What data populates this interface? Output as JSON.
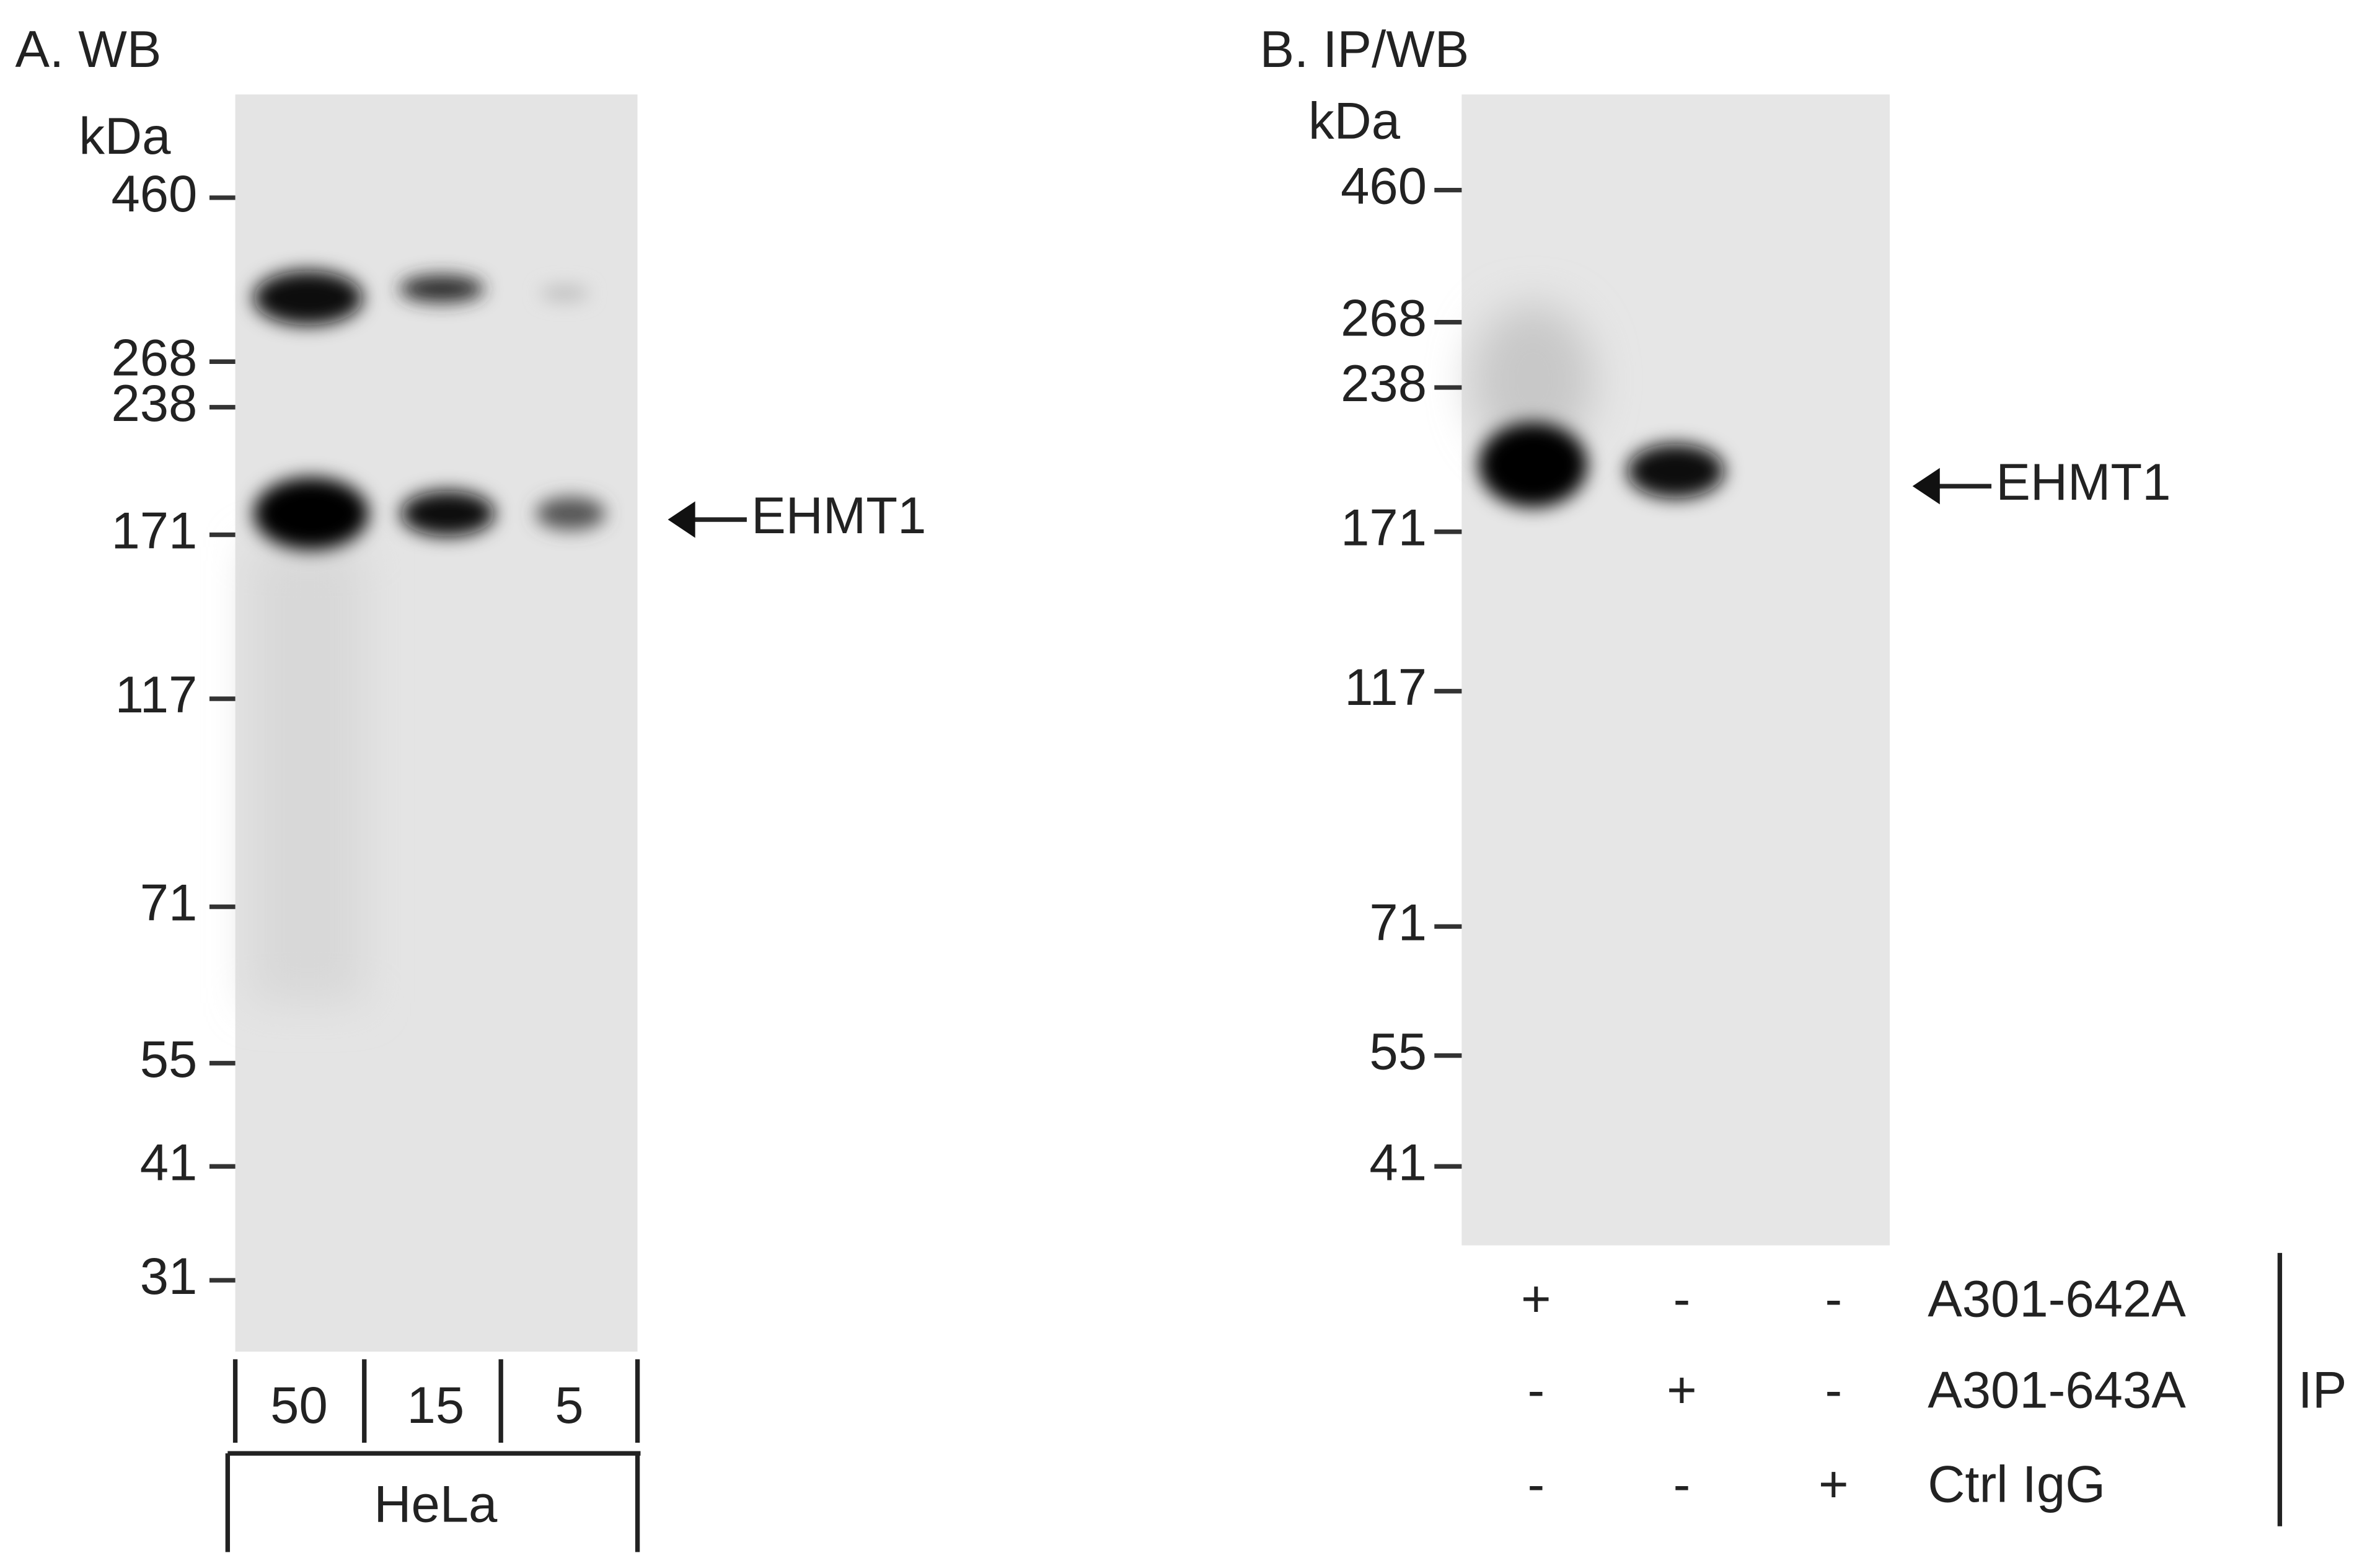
{
  "panels": [
    {
      "title": "A. WB",
      "unit": "kDa",
      "markers": [
        "460",
        "268",
        "238",
        "171",
        "117",
        "71",
        "55",
        "41",
        "31"
      ],
      "target": "EHMT1",
      "lanes": [
        "50",
        "15",
        "5"
      ],
      "sample": "HeLa"
    },
    {
      "title": "B. IP/WB",
      "unit": "kDa",
      "markers": [
        "460",
        "268",
        "238",
        "171",
        "117",
        "71",
        "55",
        "41"
      ],
      "target": "EHMT1",
      "rows": [
        {
          "label": "A301-642A",
          "signs": [
            "+",
            "-",
            "-"
          ]
        },
        {
          "label": "A301-643A",
          "signs": [
            "-",
            "+",
            "-"
          ]
        },
        {
          "label": "Ctrl IgG",
          "signs": [
            "-",
            "-",
            "+"
          ]
        }
      ],
      "group": "IP"
    }
  ]
}
